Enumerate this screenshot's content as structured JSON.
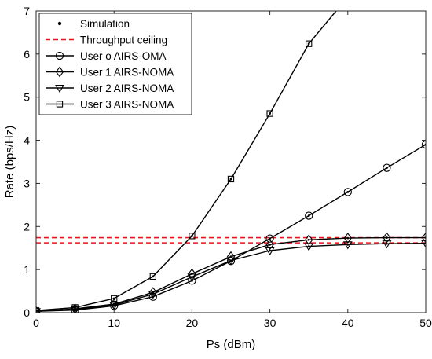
{
  "chart_data": {
    "type": "line",
    "xlabel": "Ps (dBm)",
    "ylabel": "Rate (bps/Hz)",
    "xlim": [
      0,
      50
    ],
    "ylim": [
      0,
      7
    ],
    "xticks": [
      0,
      10,
      20,
      30,
      40,
      50
    ],
    "yticks": [
      0,
      1,
      2,
      3,
      4,
      5,
      6,
      7
    ],
    "grid": false,
    "legend_position": "top-left",
    "legend": [
      "Simulation",
      "Throughput ceiling",
      "User o AIRS-OMA",
      "User 1 AIRS-NOMA",
      "User 2 AIRS-NOMA",
      "User 3 AIRS-NOMA"
    ],
    "ceilings": [
      {
        "y": 1.74,
        "color": "#e8141b"
      },
      {
        "y": 1.62,
        "color": "#e8141b"
      }
    ],
    "series": [
      {
        "name": "User o AIRS-OMA",
        "marker": "circle",
        "x": [
          0,
          5,
          10,
          15,
          20,
          25,
          30,
          35,
          40,
          45,
          50
        ],
        "y": [
          0.03,
          0.06,
          0.16,
          0.37,
          0.74,
          1.2,
          1.72,
          2.25,
          2.8,
          3.36,
          3.9
        ]
      },
      {
        "name": "User 1 AIRS-NOMA",
        "marker": "diamond",
        "x": [
          0,
          5,
          10,
          15,
          20,
          25,
          30,
          35,
          40,
          45,
          50
        ],
        "y": [
          0.03,
          0.09,
          0.2,
          0.47,
          0.9,
          1.3,
          1.58,
          1.69,
          1.73,
          1.74,
          1.74
        ]
      },
      {
        "name": "User 2 AIRS-NOMA",
        "marker": "triangle-down",
        "x": [
          0,
          5,
          10,
          15,
          20,
          25,
          30,
          35,
          40,
          45,
          50
        ],
        "y": [
          0.03,
          0.08,
          0.18,
          0.43,
          0.83,
          1.21,
          1.44,
          1.54,
          1.58,
          1.6,
          1.61
        ]
      },
      {
        "name": "User 3 AIRS-NOMA",
        "marker": "square",
        "x": [
          0,
          5,
          10,
          15,
          20,
          25,
          30,
          35,
          38.5
        ],
        "y": [
          0.05,
          0.12,
          0.33,
          0.84,
          1.78,
          3.1,
          4.62,
          6.24,
          7.0
        ],
        "marker_count": 8
      }
    ]
  }
}
